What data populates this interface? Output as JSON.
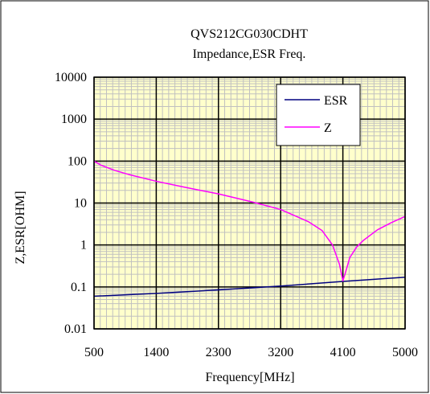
{
  "chart_data": {
    "type": "line",
    "title": "QVS212CG030CDHT",
    "subtitle": "Impedance,ESR  Freq.",
    "xlabel": "Frequency[MHz]",
    "ylabel": "Z,ESR[OHM]",
    "xlim": [
      500,
      5000
    ],
    "ylim": [
      0.01,
      10000
    ],
    "y_scale": "log",
    "grid": true,
    "legend_position": "top-right",
    "x_ticks": [
      "500",
      "1400",
      "2300",
      "3200",
      "4100",
      "5000"
    ],
    "y_ticks": [
      "0.01",
      "0.1",
      "1",
      "10",
      "100",
      "1000",
      "10000"
    ],
    "colors": {
      "plot_background": "#ffffcc",
      "grid_minor": "#c0c0c0",
      "grid_major": "#000000",
      "esr": "#000080",
      "z": "#ff00ff"
    },
    "series": [
      {
        "name": "ESR",
        "color": "#000080",
        "x": [
          500,
          1400,
          2300,
          3200,
          4100,
          5000
        ],
        "y": [
          0.06,
          0.07,
          0.085,
          0.105,
          0.135,
          0.17
        ]
      },
      {
        "name": "Z",
        "color": "#ff00ff",
        "x": [
          500,
          600,
          800,
          1000,
          1400,
          1800,
          2300,
          2800,
          3200,
          3600,
          3800,
          3950,
          4050,
          4100,
          4130,
          4200,
          4300,
          4400,
          4600,
          4800,
          5000
        ],
        "y": [
          100,
          80,
          60,
          48,
          33,
          24,
          16.5,
          10.5,
          7,
          3.6,
          2.2,
          1.0,
          0.35,
          0.14,
          0.2,
          0.5,
          0.9,
          1.3,
          2.3,
          3.4,
          4.8
        ]
      }
    ]
  }
}
